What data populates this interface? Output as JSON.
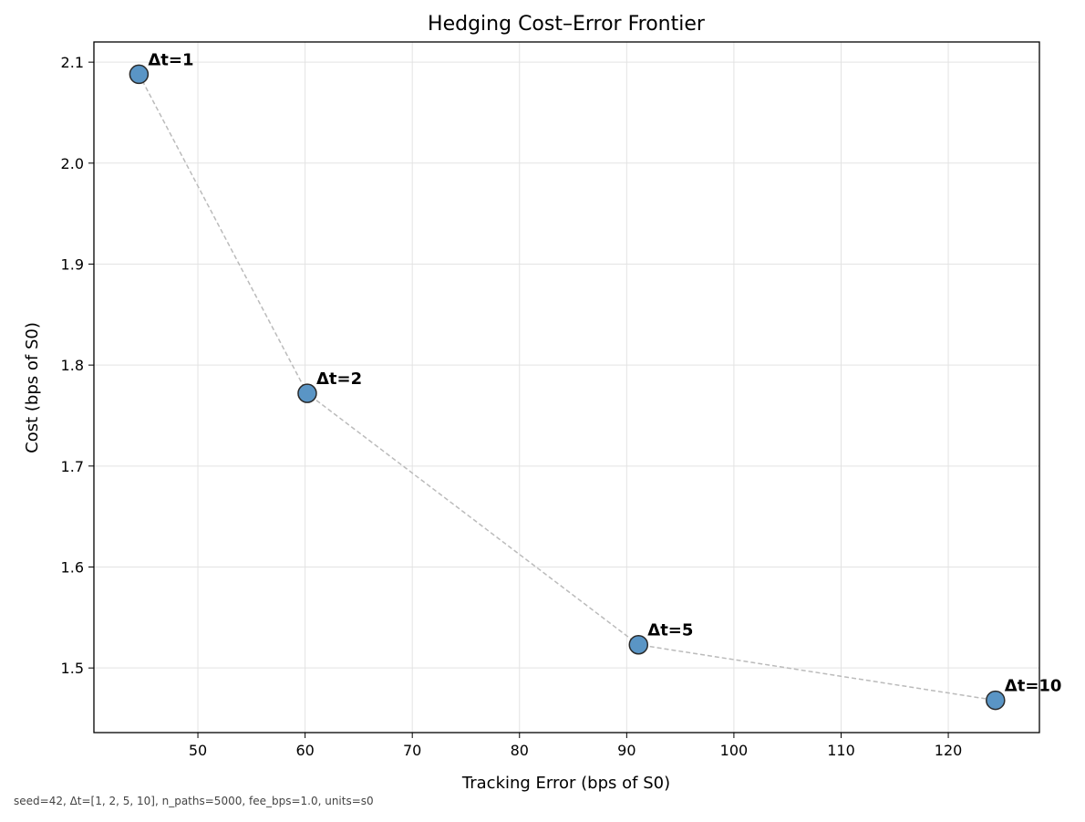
{
  "chart_data": {
    "type": "scatter",
    "title": "Hedging Cost–Error Frontier",
    "xlabel": "Tracking Error (bps of S0)",
    "ylabel": "Cost (bps of S0)",
    "xlim": [
      40.3,
      128.5
    ],
    "ylim": [
      1.436,
      2.12
    ],
    "xticks": [
      50,
      60,
      70,
      80,
      90,
      100,
      110,
      120
    ],
    "yticks": [
      1.5,
      1.6,
      1.7,
      1.8,
      1.9,
      2.0,
      2.1
    ],
    "xtick_labels": [
      "50",
      "60",
      "70",
      "80",
      "90",
      "100",
      "110",
      "120"
    ],
    "ytick_labels": [
      "1.5",
      "1.6",
      "1.7",
      "1.8",
      "1.9",
      "2.0",
      "2.1"
    ],
    "grid": true,
    "connect_points": true,
    "points": [
      {
        "label": "Δt=1",
        "x": 44.5,
        "y": 2.088
      },
      {
        "label": "Δt=2",
        "x": 60.2,
        "y": 1.772
      },
      {
        "label": "Δt=5",
        "x": 91.1,
        "y": 1.523
      },
      {
        "label": "Δt=10",
        "x": 124.4,
        "y": 1.468
      }
    ],
    "colors": {
      "marker_fill": "#5a95c5",
      "marker_edge": "#2a2a2a",
      "line": "#bbbbbb",
      "grid": "#e3e3e3"
    }
  },
  "footnote": "seed=42, Δt=[1, 2, 5, 10], n_paths=5000, fee_bps=1.0, units=s0"
}
